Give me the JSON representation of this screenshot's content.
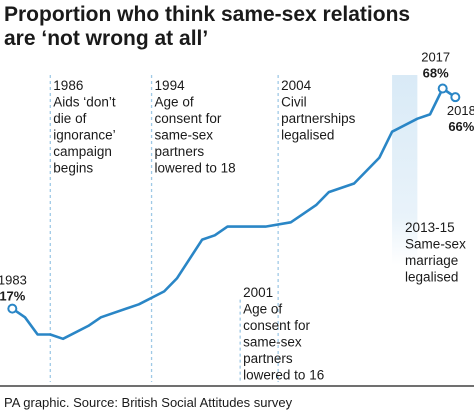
{
  "colors": {
    "line": "#2a86c6",
    "axis": "#1a1a1a",
    "guide": "#9fc9e6",
    "band": "#d7e9f6",
    "text": "#1a1a1a"
  },
  "chart_data": {
    "type": "line",
    "title_lines": [
      "Proportion who think same-sex relations",
      "are ‘not wrong at all’"
    ],
    "xlabel": "",
    "ylabel": "",
    "unit": "%",
    "xlim": [
      1982.5,
      2019
    ],
    "ylim": [
      0,
      76
    ],
    "grid": false,
    "series": [
      {
        "x": [
          1983,
          1984,
          1985,
          1986,
          1987,
          1989,
          1990,
          1993,
          1995,
          1996,
          1998,
          1999,
          2000,
          2003,
          2005,
          2006,
          2007,
          2008,
          2010,
          2012,
          2013,
          2015,
          2016,
          2017,
          2018
        ],
        "values": [
          17,
          15,
          11,
          11,
          10,
          13,
          15,
          18,
          21,
          24,
          33,
          34,
          36,
          36,
          37,
          39,
          41,
          44,
          46,
          52,
          58,
          61,
          62,
          68,
          66
        ]
      }
    ],
    "endpoints": [
      {
        "year": "1983",
        "value": "17%"
      },
      {
        "year": "2017",
        "value": "68%"
      },
      {
        "year": "2018",
        "value": "66%"
      }
    ],
    "annotations": [
      {
        "x": 1986,
        "lines": [
          "1986",
          "Aids ‘don’t",
          "die of",
          "ignorance’",
          "campaign",
          "begins"
        ]
      },
      {
        "x": 1994,
        "lines": [
          "1994",
          "Age of",
          "consent for",
          "same-sex",
          "partners",
          "lowered to 18"
        ]
      },
      {
        "x": 2001,
        "lines": [
          "2001",
          "Age of",
          "consent for",
          "same-sex",
          "partners",
          "lowered to 16"
        ]
      },
      {
        "x": 2004,
        "lines": [
          "2004",
          "Civil",
          "partnerships",
          "legalised"
        ]
      },
      {
        "x": 2013,
        "x_end": 2015,
        "lines": [
          "2013-15",
          "Same-sex",
          "marriage",
          "legalised"
        ]
      }
    ]
  },
  "source": "PA graphic. Source: British Social Attitudes survey"
}
